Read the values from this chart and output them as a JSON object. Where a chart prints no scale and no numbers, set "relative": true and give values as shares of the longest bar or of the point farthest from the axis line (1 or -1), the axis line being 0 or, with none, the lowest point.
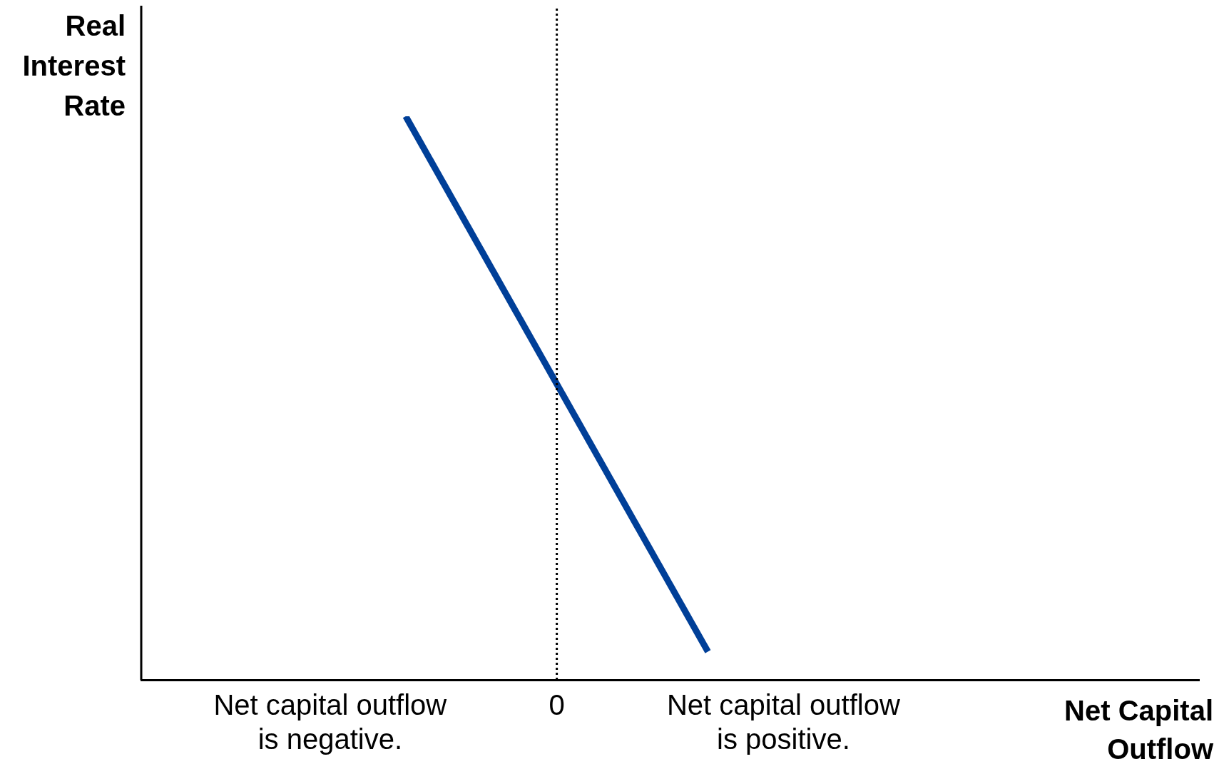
{
  "chart_data": {
    "type": "line",
    "relative": true,
    "ylabel": "Real Interest Rate",
    "xlabel": "Net Capital Outflow",
    "categories": [
      null,
      null,
      "Net capital outflow is negative.",
      null,
      null,
      "0",
      null,
      null,
      "Net capital outflow is positive.",
      null,
      null,
      null,
      null,
      null
    ],
    "values": [
      null,
      null,
      null,
      1,
      null,
      null,
      null,
      0.05,
      null,
      null,
      null,
      null,
      null,
      null
    ],
    "color": "#003f98",
    "marker": "none",
    "line_style": "solid",
    "ref_lines": [
      {
        "axis": "x",
        "value": "0",
        "color": "#000000",
        "line_style": "dotted"
      }
    ],
    "grid": false,
    "legend": false
  }
}
